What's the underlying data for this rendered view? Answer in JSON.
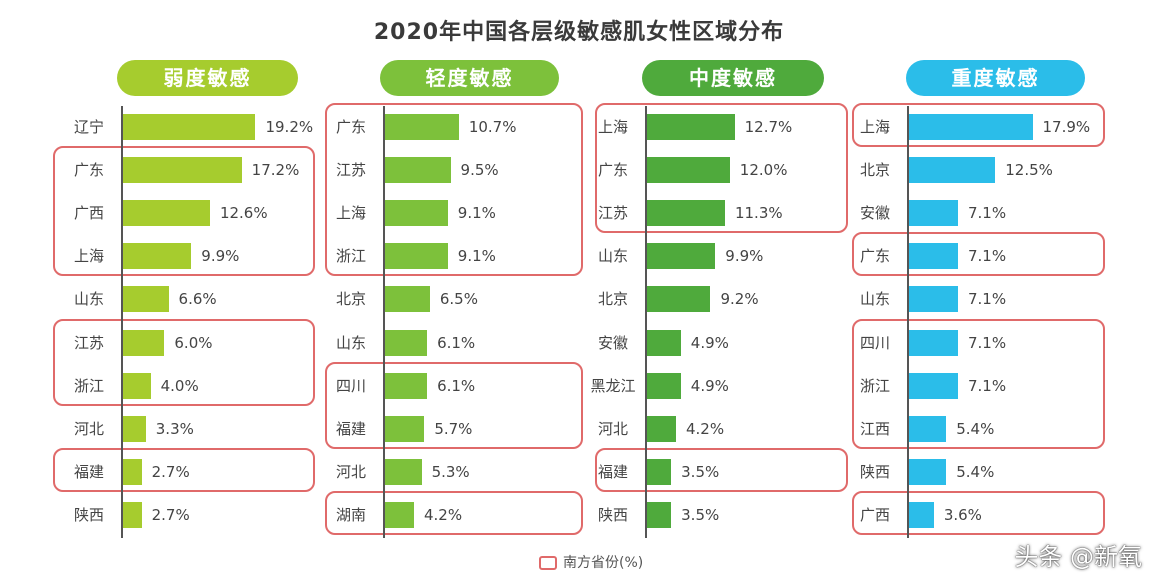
{
  "title": "2020年中国各层级敏感肌女性区域分布",
  "legend_label": "南方省份(%)",
  "watermark": "头条 @新氧",
  "colors": {
    "highlight_border": "#e06a6a"
  },
  "chart_data": [
    {
      "type": "bar",
      "orientation": "horizontal",
      "title": "弱度敏感",
      "color": "#a6cc2e",
      "unit": "%",
      "categories": [
        "辽宁",
        "广东",
        "广西",
        "上海",
        "山东",
        "江苏",
        "浙江",
        "河北",
        "福建",
        "陕西"
      ],
      "values": [
        19.2,
        17.2,
        12.6,
        9.9,
        6.6,
        6.0,
        4.0,
        3.3,
        2.7,
        2.7
      ],
      "labels": [
        "19.2%",
        "17.2%",
        "12.6%",
        "9.9%",
        "6.6%",
        "6.0%",
        "4.0%",
        "3.3%",
        "2.7%",
        "2.7%"
      ],
      "southern_groups": [
        [
          1,
          3
        ],
        [
          5,
          6
        ],
        [
          8,
          8
        ]
      ]
    },
    {
      "type": "bar",
      "orientation": "horizontal",
      "title": "轻度敏感",
      "color": "#7dc13b",
      "unit": "%",
      "categories": [
        "广东",
        "江苏",
        "上海",
        "浙江",
        "北京",
        "山东",
        "四川",
        "福建",
        "河北",
        "湖南"
      ],
      "values": [
        10.7,
        9.5,
        9.1,
        9.1,
        6.5,
        6.1,
        6.1,
        5.7,
        5.3,
        4.2
      ],
      "labels": [
        "10.7%",
        "9.5%",
        "9.1%",
        "9.1%",
        "6.5%",
        "6.1%",
        "6.1%",
        "5.7%",
        "5.3%",
        "4.2%"
      ],
      "southern_groups": [
        [
          0,
          3
        ],
        [
          6,
          7
        ],
        [
          9,
          9
        ]
      ]
    },
    {
      "type": "bar",
      "orientation": "horizontal",
      "title": "中度敏感",
      "color": "#4faa3c",
      "unit": "%",
      "categories": [
        "上海",
        "广东",
        "江苏",
        "山东",
        "北京",
        "安徽",
        "黑龙江",
        "河北",
        "福建",
        "陕西"
      ],
      "values": [
        12.7,
        12.0,
        11.3,
        9.9,
        9.2,
        4.9,
        4.9,
        4.2,
        3.5,
        3.5
      ],
      "labels": [
        "12.7%",
        "12.0%",
        "11.3%",
        "9.9%",
        "9.2%",
        "4.9%",
        "4.9%",
        "4.2%",
        "3.5%",
        "3.5%"
      ],
      "southern_groups": [
        [
          0,
          2
        ],
        [
          8,
          8
        ]
      ]
    },
    {
      "type": "bar",
      "orientation": "horizontal",
      "title": "重度敏感",
      "color": "#2bbde9",
      "unit": "%",
      "categories": [
        "上海",
        "北京",
        "安徽",
        "广东",
        "山东",
        "四川",
        "浙江",
        "江西",
        "陕西",
        "广西"
      ],
      "values": [
        17.9,
        12.5,
        7.1,
        7.1,
        7.1,
        7.1,
        7.1,
        5.4,
        5.4,
        3.6
      ],
      "labels": [
        "17.9%",
        "12.5%",
        "7.1%",
        "7.1%",
        "7.1%",
        "7.1%",
        "7.1%",
        "5.4%",
        "5.4%",
        "3.6%"
      ],
      "southern_groups": [
        [
          0,
          0
        ],
        [
          3,
          3
        ],
        [
          5,
          7
        ],
        [
          9,
          9
        ]
      ]
    }
  ]
}
